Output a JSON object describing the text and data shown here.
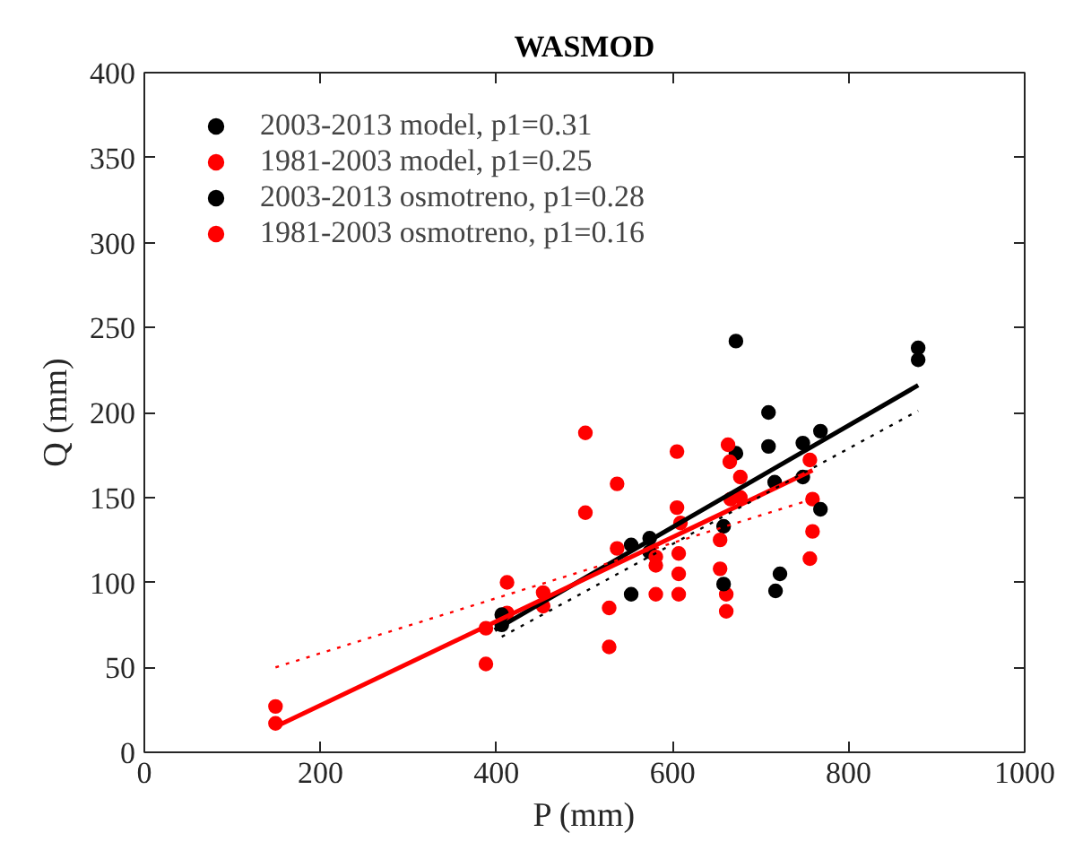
{
  "chart_data": {
    "type": "scatter",
    "title": "WASMOD",
    "xlabel": "P (mm)",
    "ylabel": "Q (mm)",
    "xlim": [
      0,
      1000
    ],
    "ylim": [
      0,
      400
    ],
    "xticks": [
      0,
      200,
      400,
      600,
      800,
      1000
    ],
    "yticks": [
      0,
      50,
      100,
      150,
      200,
      250,
      300,
      350,
      400
    ],
    "grid": false,
    "legend": "top left",
    "series": [
      {
        "name": "2003-2013 model, p1=0.31",
        "color": "#000000",
        "marker": "circle",
        "x": [
          406,
          553,
          574,
          658,
          672,
          709,
          716,
          748,
          768,
          879
        ],
        "values": [
          75,
          122,
          126,
          133,
          176,
          180,
          159,
          182,
          189,
          231
        ]
      },
      {
        "name": "1981-2003 model, p1=0.25",
        "color": "#ff0000",
        "marker": "circle",
        "x": [
          149,
          388,
          412,
          453,
          501,
          528,
          537,
          581,
          605,
          607,
          609,
          654,
          661,
          666,
          677,
          756,
          759
        ],
        "values": [
          17,
          52,
          82,
          86,
          141,
          85,
          120,
          93,
          177,
          105,
          135,
          125,
          93,
          149,
          162,
          172,
          149
        ]
      },
      {
        "name": "2003-2013 osmotreno, p1=0.28",
        "color": "#000000",
        "marker": "circle",
        "x": [
          406,
          553,
          574,
          658,
          672,
          709,
          717,
          722,
          748,
          768,
          879
        ],
        "values": [
          81,
          93,
          118,
          99,
          242,
          200,
          95,
          105,
          162,
          143,
          238
        ]
      },
      {
        "name": "1981-2003 osmotreno, p1=0.16",
        "color": "#ff0000",
        "marker": "circle",
        "x": [
          149,
          388,
          412,
          453,
          501,
          528,
          537,
          581,
          581,
          605,
          607,
          607,
          654,
          661,
          663,
          665,
          677,
          756,
          759
        ],
        "values": [
          27,
          73,
          100,
          94,
          188,
          62,
          158,
          115,
          110,
          144,
          117,
          93,
          108,
          83,
          181,
          171,
          150,
          114,
          130
        ]
      },
      {
        "type": "line",
        "marker": "none",
        "color": "#000000",
        "line_style": "solid",
        "x": [
          398,
          879
        ],
        "values": [
          72,
          216
        ]
      },
      {
        "type": "line",
        "marker": "none",
        "color": "#ff0000",
        "line_style": "solid",
        "x": [
          149,
          759
        ],
        "values": [
          15,
          166
        ]
      },
      {
        "type": "line",
        "marker": "none",
        "color": "#000000",
        "line_style": "dotted",
        "x": [
          406,
          879
        ],
        "values": [
          68,
          201
        ]
      },
      {
        "type": "line",
        "marker": "none",
        "color": "#ff0000",
        "line_style": "dotted",
        "x": [
          149,
          759
        ],
        "values": [
          50,
          149
        ]
      }
    ]
  }
}
